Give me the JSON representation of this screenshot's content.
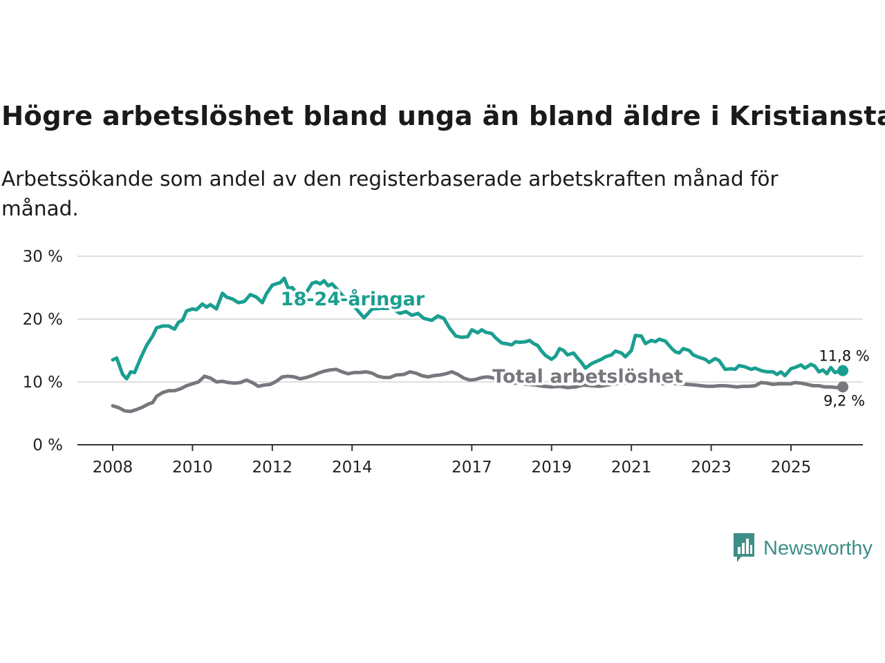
{
  "title": "Högre arbetslöshet bland unga än bland äldre i Kristianstad",
  "subtitle": "Arbetssökande som andel av den registerbaserade arbetskraften månad för månad.",
  "brand": {
    "name": "Newsworthy",
    "icon": "newsworthy-logo-icon",
    "color": "#3d8f87"
  },
  "chart_data": {
    "type": "line",
    "title": "Högre arbetslöshet bland unga än bland äldre i Kristianstad",
    "xlabel": "",
    "ylabel": "",
    "ylim": [
      0,
      30
    ],
    "xlim": [
      2007.75,
      2026.9
    ],
    "grid": true,
    "y_ticks": [
      0,
      10,
      20,
      30
    ],
    "y_tick_labels": [
      "0 %",
      "10 %",
      "20 %",
      "30 %"
    ],
    "x_ticks": [
      2008,
      2010,
      2012,
      2014,
      2017,
      2019,
      2021,
      2023,
      2025
    ],
    "x_tick_labels": [
      "2008",
      "2010",
      "2012",
      "2014",
      "2017",
      "2019",
      "2021",
      "2023",
      "2025"
    ],
    "series": [
      {
        "name": "18-24-åringar",
        "color": "#1a9e90",
        "end_label": "11,8 %",
        "points": [
          [
            2008.0,
            13.5
          ],
          [
            2008.1,
            13.8
          ],
          [
            2008.25,
            11.2
          ],
          [
            2008.35,
            10.5
          ],
          [
            2008.45,
            11.6
          ],
          [
            2008.55,
            11.5
          ],
          [
            2008.7,
            13.8
          ],
          [
            2008.85,
            15.8
          ],
          [
            2009.0,
            17.3
          ],
          [
            2009.1,
            18.6
          ],
          [
            2009.25,
            18.9
          ],
          [
            2009.4,
            18.9
          ],
          [
            2009.55,
            18.4
          ],
          [
            2009.65,
            19.5
          ],
          [
            2009.75,
            19.8
          ],
          [
            2009.85,
            21.3
          ],
          [
            2010.0,
            21.6
          ],
          [
            2010.1,
            21.5
          ],
          [
            2010.25,
            22.4
          ],
          [
            2010.35,
            21.9
          ],
          [
            2010.45,
            22.3
          ],
          [
            2010.6,
            21.6
          ],
          [
            2010.75,
            24.1
          ],
          [
            2010.85,
            23.5
          ],
          [
            2011.0,
            23.2
          ],
          [
            2011.15,
            22.6
          ],
          [
            2011.3,
            22.8
          ],
          [
            2011.45,
            23.9
          ],
          [
            2011.6,
            23.5
          ],
          [
            2011.75,
            22.6
          ],
          [
            2011.85,
            24.0
          ],
          [
            2012.0,
            25.4
          ],
          [
            2012.1,
            25.6
          ],
          [
            2012.2,
            25.8
          ],
          [
            2012.3,
            26.5
          ],
          [
            2012.4,
            24.9
          ],
          [
            2012.5,
            25.0
          ],
          [
            2012.6,
            24.3
          ],
          [
            2012.75,
            22.3
          ],
          [
            2012.85,
            24.2
          ],
          [
            2013.0,
            25.7
          ],
          [
            2013.1,
            25.9
          ],
          [
            2013.2,
            25.6
          ],
          [
            2013.3,
            26.1
          ],
          [
            2013.4,
            25.3
          ],
          [
            2013.5,
            25.6
          ],
          [
            2013.6,
            24.9
          ],
          [
            2013.75,
            23.8
          ],
          [
            2014.0,
            22.4
          ],
          [
            2014.3,
            20.2
          ],
          [
            2014.5,
            21.6
          ],
          [
            2014.7,
            21.7
          ],
          [
            2015.0,
            21.7
          ],
          [
            2015.2,
            20.9
          ],
          [
            2015.35,
            21.2
          ],
          [
            2015.5,
            20.6
          ],
          [
            2015.65,
            20.9
          ],
          [
            2015.8,
            20.1
          ],
          [
            2016.0,
            19.8
          ],
          [
            2016.15,
            20.5
          ],
          [
            2016.3,
            20.1
          ],
          [
            2016.45,
            18.5
          ],
          [
            2016.6,
            17.3
          ],
          [
            2016.75,
            17.1
          ],
          [
            2016.9,
            17.2
          ],
          [
            2017.0,
            18.3
          ],
          [
            2017.15,
            17.8
          ],
          [
            2017.25,
            18.3
          ],
          [
            2017.35,
            17.9
          ],
          [
            2017.5,
            17.7
          ],
          [
            2017.6,
            17.0
          ],
          [
            2017.75,
            16.2
          ],
          [
            2017.85,
            16.1
          ],
          [
            2018.0,
            15.9
          ],
          [
            2018.1,
            16.4
          ],
          [
            2018.2,
            16.3
          ],
          [
            2018.35,
            16.4
          ],
          [
            2018.45,
            16.6
          ],
          [
            2018.55,
            16.1
          ],
          [
            2018.65,
            15.8
          ],
          [
            2018.75,
            14.9
          ],
          [
            2018.85,
            14.2
          ],
          [
            2019.0,
            13.6
          ],
          [
            2019.1,
            14.1
          ],
          [
            2019.2,
            15.3
          ],
          [
            2019.3,
            15.0
          ],
          [
            2019.4,
            14.3
          ],
          [
            2019.55,
            14.6
          ],
          [
            2019.65,
            13.8
          ],
          [
            2019.75,
            13.1
          ],
          [
            2019.85,
            12.2
          ],
          [
            2020.0,
            12.9
          ],
          [
            2020.1,
            13.2
          ],
          [
            2020.25,
            13.6
          ],
          [
            2020.35,
            14.0
          ],
          [
            2020.5,
            14.3
          ],
          [
            2020.6,
            14.9
          ],
          [
            2020.75,
            14.6
          ],
          [
            2020.85,
            14.0
          ],
          [
            2021.0,
            15.0
          ],
          [
            2021.1,
            17.4
          ],
          [
            2021.25,
            17.3
          ],
          [
            2021.35,
            16.1
          ],
          [
            2021.5,
            16.6
          ],
          [
            2021.6,
            16.4
          ],
          [
            2021.7,
            16.8
          ],
          [
            2021.85,
            16.5
          ],
          [
            2022.0,
            15.4
          ],
          [
            2022.1,
            14.8
          ],
          [
            2022.2,
            14.6
          ],
          [
            2022.3,
            15.3
          ],
          [
            2022.45,
            15.0
          ],
          [
            2022.55,
            14.3
          ],
          [
            2022.7,
            13.9
          ],
          [
            2022.85,
            13.6
          ],
          [
            2022.95,
            13.1
          ],
          [
            2023.1,
            13.7
          ],
          [
            2023.2,
            13.4
          ],
          [
            2023.35,
            12.0
          ],
          [
            2023.5,
            12.1
          ],
          [
            2023.6,
            12.0
          ],
          [
            2023.7,
            12.6
          ],
          [
            2023.85,
            12.4
          ],
          [
            2024.0,
            12.0
          ],
          [
            2024.1,
            12.2
          ],
          [
            2024.25,
            11.8
          ],
          [
            2024.4,
            11.6
          ],
          [
            2024.55,
            11.6
          ],
          [
            2024.65,
            11.2
          ],
          [
            2024.75,
            11.6
          ],
          [
            2024.85,
            11.0
          ],
          [
            2025.0,
            12.1
          ],
          [
            2025.1,
            12.3
          ],
          [
            2025.25,
            12.7
          ],
          [
            2025.35,
            12.2
          ],
          [
            2025.5,
            12.8
          ],
          [
            2025.6,
            12.5
          ],
          [
            2025.7,
            11.6
          ],
          [
            2025.8,
            11.9
          ],
          [
            2025.9,
            11.3
          ],
          [
            2026.0,
            12.3
          ],
          [
            2026.1,
            11.5
          ],
          [
            2026.2,
            11.7
          ],
          [
            2026.3,
            11.8
          ]
        ]
      },
      {
        "name": "Total arbetslöshet",
        "color": "#78777d",
        "end_label": "9,2 %",
        "points": [
          [
            2008.0,
            6.2
          ],
          [
            2008.15,
            5.9
          ],
          [
            2008.3,
            5.4
          ],
          [
            2008.45,
            5.3
          ],
          [
            2008.6,
            5.6
          ],
          [
            2008.75,
            6.0
          ],
          [
            2008.9,
            6.5
          ],
          [
            2009.0,
            6.7
          ],
          [
            2009.1,
            7.7
          ],
          [
            2009.25,
            8.3
          ],
          [
            2009.4,
            8.6
          ],
          [
            2009.55,
            8.6
          ],
          [
            2009.7,
            8.9
          ],
          [
            2009.85,
            9.4
          ],
          [
            2010.0,
            9.7
          ],
          [
            2010.15,
            10.0
          ],
          [
            2010.3,
            10.9
          ],
          [
            2010.45,
            10.6
          ],
          [
            2010.6,
            10.0
          ],
          [
            2010.75,
            10.1
          ],
          [
            2010.9,
            9.9
          ],
          [
            2011.05,
            9.8
          ],
          [
            2011.2,
            9.9
          ],
          [
            2011.35,
            10.3
          ],
          [
            2011.5,
            9.9
          ],
          [
            2011.65,
            9.3
          ],
          [
            2011.8,
            9.5
          ],
          [
            2011.95,
            9.6
          ],
          [
            2012.1,
            10.1
          ],
          [
            2012.25,
            10.8
          ],
          [
            2012.4,
            10.9
          ],
          [
            2012.55,
            10.8
          ],
          [
            2012.7,
            10.5
          ],
          [
            2012.85,
            10.7
          ],
          [
            2013.0,
            11.0
          ],
          [
            2013.15,
            11.4
          ],
          [
            2013.3,
            11.7
          ],
          [
            2013.45,
            11.9
          ],
          [
            2013.6,
            12.0
          ],
          [
            2013.75,
            11.6
          ],
          [
            2013.9,
            11.3
          ],
          [
            2014.05,
            11.5
          ],
          [
            2014.2,
            11.5
          ],
          [
            2014.35,
            11.6
          ],
          [
            2014.5,
            11.4
          ],
          [
            2014.65,
            10.9
          ],
          [
            2014.8,
            10.7
          ],
          [
            2014.95,
            10.7
          ],
          [
            2015.1,
            11.1
          ],
          [
            2015.3,
            11.2
          ],
          [
            2015.45,
            11.6
          ],
          [
            2015.6,
            11.4
          ],
          [
            2015.75,
            11.0
          ],
          [
            2015.9,
            10.8
          ],
          [
            2016.05,
            11.0
          ],
          [
            2016.2,
            11.1
          ],
          [
            2016.35,
            11.3
          ],
          [
            2016.5,
            11.6
          ],
          [
            2016.65,
            11.2
          ],
          [
            2016.8,
            10.6
          ],
          [
            2016.95,
            10.3
          ],
          [
            2017.1,
            10.4
          ],
          [
            2017.25,
            10.7
          ],
          [
            2017.4,
            10.8
          ],
          [
            2017.55,
            10.6
          ],
          [
            2017.7,
            10.3
          ],
          [
            2017.85,
            10.0
          ],
          [
            2018.0,
            9.8
          ],
          [
            2018.2,
            9.8
          ],
          [
            2018.4,
            9.6
          ],
          [
            2018.6,
            9.5
          ],
          [
            2018.8,
            9.3
          ],
          [
            2019.0,
            9.2
          ],
          [
            2019.2,
            9.3
          ],
          [
            2019.4,
            9.1
          ],
          [
            2019.6,
            9.2
          ],
          [
            2019.8,
            9.5
          ],
          [
            2020.0,
            9.4
          ],
          [
            2020.2,
            9.3
          ],
          [
            2020.4,
            9.5
          ],
          [
            2020.6,
            9.7
          ],
          [
            2020.8,
            9.8
          ],
          [
            2021.0,
            10.1
          ],
          [
            2021.2,
            10.0
          ],
          [
            2021.4,
            9.9
          ],
          [
            2021.6,
            9.9
          ],
          [
            2021.8,
            9.7
          ],
          [
            2022.0,
            9.8
          ],
          [
            2022.2,
            9.7
          ],
          [
            2022.4,
            9.6
          ],
          [
            2022.6,
            9.5
          ],
          [
            2022.75,
            9.4
          ],
          [
            2022.9,
            9.3
          ],
          [
            2023.05,
            9.3
          ],
          [
            2023.2,
            9.4
          ],
          [
            2023.35,
            9.4
          ],
          [
            2023.5,
            9.3
          ],
          [
            2023.65,
            9.2
          ],
          [
            2023.8,
            9.3
          ],
          [
            2023.95,
            9.3
          ],
          [
            2024.1,
            9.4
          ],
          [
            2024.25,
            9.9
          ],
          [
            2024.4,
            9.8
          ],
          [
            2024.55,
            9.6
          ],
          [
            2024.7,
            9.7
          ],
          [
            2024.85,
            9.7
          ],
          [
            2025.0,
            9.7
          ],
          [
            2025.1,
            9.9
          ],
          [
            2025.25,
            9.8
          ],
          [
            2025.4,
            9.6
          ],
          [
            2025.55,
            9.4
          ],
          [
            2025.7,
            9.4
          ],
          [
            2025.85,
            9.2
          ],
          [
            2026.0,
            9.2
          ],
          [
            2026.15,
            9.1
          ],
          [
            2026.3,
            9.2
          ]
        ]
      }
    ]
  }
}
